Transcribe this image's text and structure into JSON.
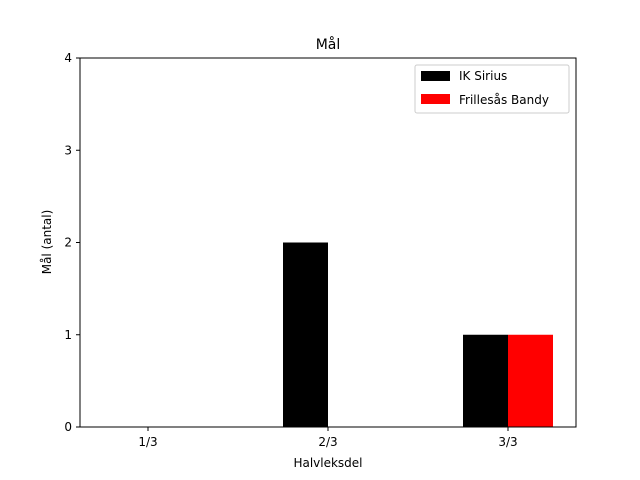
{
  "chart_data": {
    "type": "bar",
    "title": "Mål",
    "xlabel": "Halvleksdel",
    "ylabel": "Mål (antal)",
    "categories": [
      "1/3",
      "2/3",
      "3/3"
    ],
    "ylim": [
      0,
      4
    ],
    "yticks": [
      "0",
      "1",
      "2",
      "3",
      "4"
    ],
    "grid": false,
    "legend_position": "top-right",
    "series": [
      {
        "name": "IK Sirius",
        "color": "#000000",
        "values": [
          0,
          2,
          1
        ]
      },
      {
        "name": "Frillesås Bandy",
        "color": "#ff0000",
        "values": [
          0,
          0,
          1
        ]
      }
    ]
  }
}
